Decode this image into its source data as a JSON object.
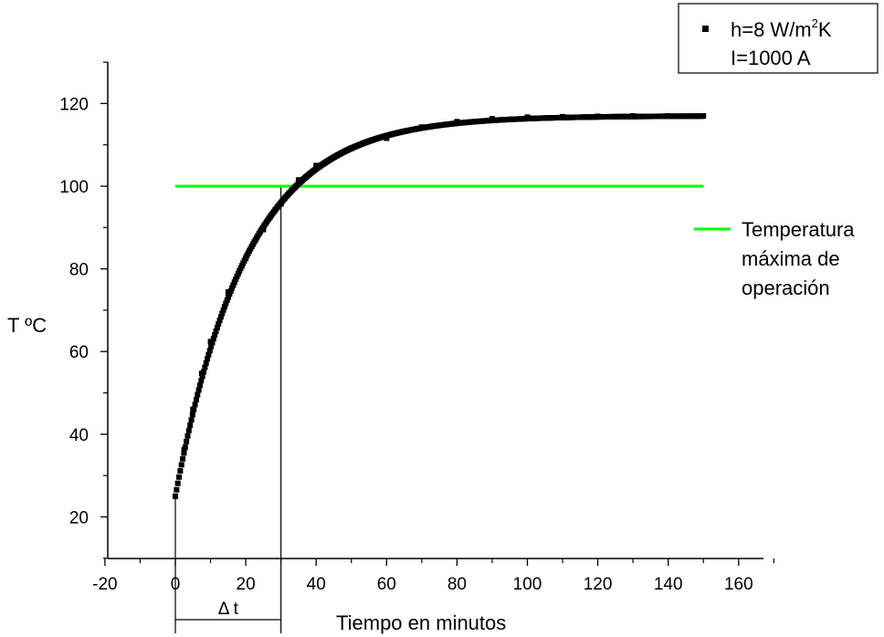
{
  "chart_data": {
    "type": "scatter",
    "title": "",
    "xlabel": "Tiempo en minutos",
    "ylabel": "T ºC",
    "xlim": [
      -20,
      170
    ],
    "ylim": [
      10,
      130
    ],
    "xticks": [
      -20,
      0,
      20,
      40,
      60,
      80,
      100,
      120,
      140,
      160
    ],
    "yticks": [
      20,
      40,
      60,
      80,
      100,
      120
    ],
    "grid": false,
    "series": [
      {
        "name": "h=8 W/m²K I=1000 A",
        "kind": "scatter",
        "marker": "square",
        "color": "#000000",
        "model": "T(t) = 117 - 92*exp(-t/20.3)",
        "x": [
          0,
          2.5,
          5,
          7.5,
          10,
          15,
          20,
          25,
          30,
          35,
          40,
          50,
          60,
          70,
          80,
          90,
          100,
          110,
          120,
          130,
          140,
          150
        ],
        "y": [
          25,
          36.2,
          46.0,
          54.7,
          62.4,
          74.4,
          82.6,
          89.5,
          95.7,
          101.5,
          105.0,
          109.2,
          111.6,
          114.3,
          115.6,
          116.3,
          116.7,
          116.8,
          116.9,
          117.0,
          117.0,
          117.0
        ]
      },
      {
        "name": "Temperatura máxima de operación",
        "kind": "line",
        "color": "#00ff00",
        "x": [
          0,
          150
        ],
        "y": [
          100,
          100
        ]
      }
    ],
    "annotations": [
      {
        "label": "Δ t",
        "from": 0,
        "to": 30
      }
    ],
    "legend": {
      "box_line1_prefix": "h=8 W/m",
      "box_line1_sup": "2",
      "box_line1_suffix": "K",
      "box_line2": "I=1000 A",
      "green_line": [
        "Temperatura",
        "máxima de",
        "operación"
      ],
      "placement": "top-right"
    }
  }
}
